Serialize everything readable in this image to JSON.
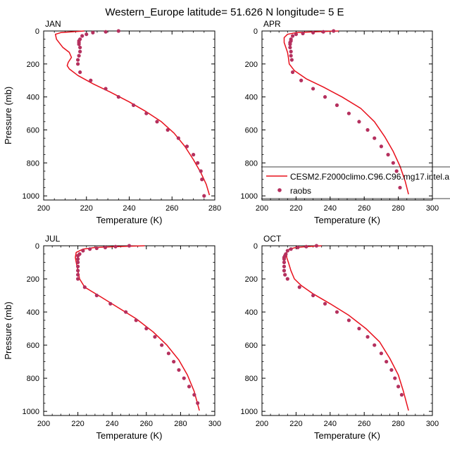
{
  "title": "Western_Europe  latitude= 51.626 N longitude= 5 E",
  "colors": {
    "model_line": "#e8101c",
    "obs_dots": "#b5305e",
    "axis": "#000000"
  },
  "legend": {
    "placement": "in APR panel, lower right",
    "model_label": "CESM2.F2000climo.C96.C96.mg17.intel.a",
    "obs_label": "raobs"
  },
  "chart_data": [
    {
      "type": "line",
      "panel_label": "JAN",
      "xlabel": "Temperature (K)",
      "ylabel": "Pressure (mb)",
      "xlim": [
        200,
        280
      ],
      "ylim": [
        0,
        1025
      ],
      "y_reversed": true,
      "xticks": [
        200,
        220,
        240,
        260,
        280
      ],
      "yticks": [
        0,
        200,
        400,
        600,
        800,
        1000
      ],
      "series": [
        {
          "name": "CESM2.F2000climo.C96.C96.mg17.intel.a",
          "kind": "line",
          "x": [
            219,
            208,
            205.5,
            206,
            209,
            212,
            213,
            211.5,
            211,
            212,
            216,
            223,
            231,
            240,
            248,
            255,
            261,
            266,
            270,
            273.5,
            276,
            277.5
          ],
          "y": [
            0,
            10,
            20,
            50,
            100,
            130,
            160,
            190,
            210,
            230,
            270,
            320,
            370,
            430,
            490,
            550,
            620,
            700,
            780,
            860,
            930,
            995
          ]
        },
        {
          "name": "raobs",
          "kind": "scatter",
          "x": [
            235,
            229,
            223,
            220,
            218,
            217,
            216.5,
            216.5,
            216.5,
            217,
            217,
            216.5,
            216,
            216,
            217,
            222,
            229,
            235,
            242,
            248,
            253,
            258,
            263,
            267,
            270,
            272,
            273.5,
            274,
            275
          ],
          "y": [
            0,
            5,
            10,
            20,
            30,
            50,
            60,
            70,
            80,
            100,
            125,
            150,
            175,
            200,
            250,
            300,
            350,
            400,
            450,
            500,
            550,
            600,
            650,
            700,
            750,
            800,
            850,
            900,
            1000
          ]
        }
      ]
    },
    {
      "type": "line",
      "panel_label": "APR",
      "xlabel": "Temperature (K)",
      "ylabel": "",
      "xlim": [
        200,
        300
      ],
      "ylim": [
        0,
        1025
      ],
      "y_reversed": true,
      "xticks": [
        200,
        220,
        240,
        260,
        280,
        300
      ],
      "yticks": [
        0,
        200,
        400,
        600,
        800,
        1000
      ],
      "series": [
        {
          "name": "CESM2.F2000climo.C96.C96.mg17.intel.a",
          "kind": "line",
          "x": [
            245,
            230,
            220,
            215,
            213,
            213,
            214,
            215,
            215.5,
            216,
            219,
            226,
            236,
            247,
            258,
            266,
            272,
            277,
            281,
            284,
            286
          ],
          "y": [
            0,
            5,
            10,
            20,
            40,
            70,
            100,
            130,
            160,
            200,
            240,
            290,
            340,
            400,
            470,
            550,
            640,
            730,
            820,
            910,
            990
          ]
        },
        {
          "name": "raobs",
          "kind": "scatter",
          "x": [
            242,
            236,
            230,
            224,
            220,
            218,
            217,
            217,
            216.5,
            216.5,
            216.5,
            217,
            217,
            217.5,
            218,
            223,
            230,
            237,
            244,
            251,
            257,
            262,
            266,
            270,
            274,
            277,
            279,
            281
          ],
          "y": [
            0,
            5,
            10,
            15,
            20,
            30,
            50,
            60,
            70,
            80,
            100,
            125,
            150,
            175,
            250,
            300,
            350,
            400,
            450,
            500,
            550,
            600,
            650,
            700,
            750,
            800,
            850,
            950
          ]
        }
      ]
    },
    {
      "type": "line",
      "panel_label": "JUL",
      "xlabel": "Temperature (K)",
      "ylabel": "Pressure (mb)",
      "xlim": [
        200,
        300
      ],
      "ylim": [
        0,
        1025
      ],
      "y_reversed": true,
      "xticks": [
        200,
        220,
        240,
        260,
        280,
        300
      ],
      "yticks": [
        0,
        200,
        400,
        600,
        800,
        1000
      ],
      "series": [
        {
          "name": "CESM2.F2000climo.C96.C96.mg17.intel.a",
          "kind": "line",
          "x": [
            259,
            242,
            230,
            223,
            219,
            218.5,
            219,
            220,
            221,
            224,
            232,
            243,
            254,
            264,
            272,
            279,
            284,
            288,
            291
          ],
          "y": [
            0,
            5,
            10,
            20,
            40,
            70,
            100,
            150,
            200,
            250,
            300,
            370,
            440,
            520,
            600,
            690,
            780,
            880,
            995
          ]
        },
        {
          "name": "raobs",
          "kind": "scatter",
          "x": [
            250,
            242,
            236,
            231,
            227,
            223,
            221,
            220,
            220,
            220,
            220,
            220,
            220,
            220,
            224,
            231,
            239,
            248,
            254,
            260,
            265,
            269,
            273,
            276,
            279,
            282,
            285,
            288,
            290
          ],
          "y": [
            0,
            5,
            10,
            15,
            20,
            30,
            50,
            60,
            80,
            100,
            125,
            150,
            175,
            200,
            250,
            300,
            350,
            400,
            450,
            500,
            550,
            600,
            650,
            700,
            750,
            800,
            850,
            900,
            950
          ]
        }
      ]
    },
    {
      "type": "line",
      "panel_label": "OCT",
      "xlabel": "Temperature (K)",
      "ylabel": "",
      "xlim": [
        200,
        300
      ],
      "ylim": [
        0,
        1025
      ],
      "y_reversed": true,
      "xticks": [
        200,
        220,
        240,
        260,
        280,
        300
      ],
      "yticks": [
        0,
        200,
        400,
        600,
        800,
        1000
      ],
      "series": [
        {
          "name": "CESM2.F2000climo.C96.C96.mg17.intel.a",
          "kind": "line",
          "x": [
            235,
            226,
            220,
            216,
            214.5,
            214.5,
            215.5,
            217,
            219,
            223,
            230,
            240,
            251,
            261,
            269,
            275,
            280,
            283,
            286
          ],
          "y": [
            0,
            5,
            10,
            20,
            40,
            70,
            100,
            150,
            200,
            240,
            290,
            350,
            420,
            500,
            580,
            680,
            780,
            880,
            995
          ]
        },
        {
          "name": "raobs",
          "kind": "scatter",
          "x": [
            232,
            226,
            221,
            217,
            215,
            214,
            213.5,
            213,
            213,
            213,
            213,
            213,
            213.5,
            215,
            222,
            230,
            237,
            244,
            251,
            257,
            262,
            266,
            270,
            273,
            276,
            278,
            280,
            282
          ],
          "y": [
            0,
            5,
            10,
            20,
            30,
            50,
            60,
            70,
            80,
            100,
            125,
            150,
            175,
            200,
            250,
            300,
            350,
            400,
            450,
            500,
            550,
            600,
            650,
            700,
            750,
            800,
            850,
            900
          ]
        }
      ]
    }
  ]
}
